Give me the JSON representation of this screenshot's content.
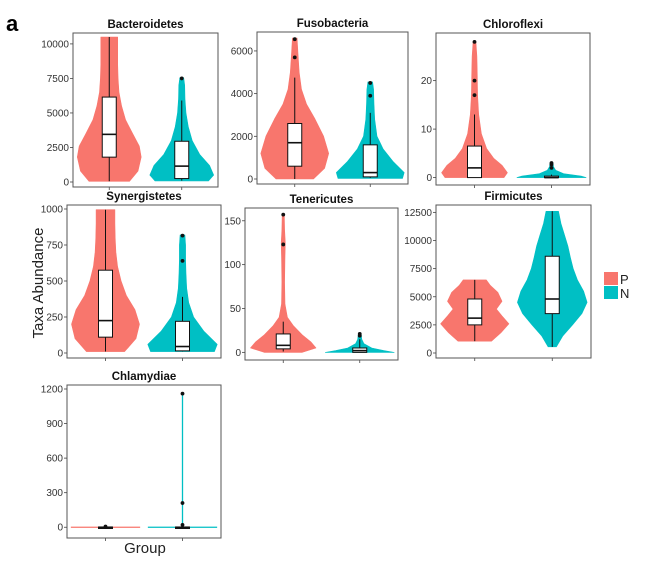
{
  "figure": {
    "panel_label": "a",
    "ylabel": "Taxa Abundance",
    "xlabel": "Group",
    "legend": {
      "position": "right",
      "items": [
        {
          "key": "P",
          "label": "P",
          "color": "#F8766D"
        },
        {
          "key": "N",
          "label": "N",
          "color": "#00BFC4"
        }
      ]
    }
  },
  "chart_data": [
    {
      "type": "violin",
      "title": "Bacteroidetes",
      "ylim": [
        0,
        10500
      ],
      "yticks": [
        0,
        2500,
        5000,
        7500,
        10000
      ],
      "ytick_labels": [
        "0",
        "2500",
        "5000",
        "7500",
        "10000"
      ],
      "groups": [
        {
          "name": "P",
          "min": 50,
          "q1": 1800,
          "median": 3450,
          "q3": 6150,
          "max": 10500,
          "outliers": [],
          "density": [
            [
              50,
              0.62
            ],
            [
              800,
              0.88
            ],
            [
              1800,
              0.98
            ],
            [
              2600,
              0.92
            ],
            [
              3500,
              0.72
            ],
            [
              4500,
              0.5
            ],
            [
              5500,
              0.38
            ],
            [
              6500,
              0.3
            ],
            [
              7500,
              0.27
            ],
            [
              8500,
              0.26
            ],
            [
              9500,
              0.26
            ],
            [
              10500,
              0.26
            ]
          ]
        },
        {
          "name": "N",
          "min": 100,
          "q1": 250,
          "median": 1150,
          "q3": 2950,
          "max": 5900,
          "outliers": [
            7500
          ],
          "density": [
            [
              80,
              0.82
            ],
            [
              500,
              0.98
            ],
            [
              1200,
              0.85
            ],
            [
              2000,
              0.55
            ],
            [
              3000,
              0.32
            ],
            [
              4000,
              0.2
            ],
            [
              5000,
              0.13
            ],
            [
              6000,
              0.1
            ],
            [
              7000,
              0.09
            ],
            [
              7550,
              0.06
            ]
          ]
        }
      ]
    },
    {
      "type": "violin",
      "title": "Fusobacteria",
      "ylim": [
        0,
        6700
      ],
      "yticks": [
        0,
        2000,
        4000,
        6000
      ],
      "ytick_labels": [
        "0",
        "2000",
        "4000",
        "6000"
      ],
      "groups": [
        {
          "name": "P",
          "min": 0,
          "q1": 600,
          "median": 1700,
          "q3": 2600,
          "max": 4750,
          "outliers": [
            5700,
            6550
          ],
          "density": [
            [
              0,
              0.55
            ],
            [
              500,
              0.88
            ],
            [
              1200,
              1.0
            ],
            [
              2000,
              0.85
            ],
            [
              2800,
              0.6
            ],
            [
              3500,
              0.35
            ],
            [
              4200,
              0.2
            ],
            [
              5000,
              0.13
            ],
            [
              5800,
              0.1
            ],
            [
              6600,
              0.07
            ]
          ]
        },
        {
          "name": "N",
          "min": 50,
          "q1": 100,
          "median": 300,
          "q3": 1600,
          "max": 3100,
          "outliers": [
            3900,
            4500
          ],
          "density": [
            [
              30,
              0.95
            ],
            [
              300,
              1.0
            ],
            [
              800,
              0.68
            ],
            [
              1400,
              0.38
            ],
            [
              2000,
              0.2
            ],
            [
              2800,
              0.13
            ],
            [
              3500,
              0.11
            ],
            [
              4200,
              0.1
            ],
            [
              4550,
              0.07
            ]
          ]
        }
      ]
    },
    {
      "type": "violin",
      "title": "Chloroflexi",
      "ylim": [
        -0.5,
        29
      ],
      "yticks": [
        0,
        10,
        20
      ],
      "ytick_labels": [
        "0",
        "10",
        "20"
      ],
      "groups": [
        {
          "name": "P",
          "min": 0,
          "q1": 0,
          "median": 2,
          "q3": 6.5,
          "max": 13,
          "outliers": [
            17,
            20,
            28
          ],
          "density": [
            [
              0,
              0.85
            ],
            [
              1,
              0.95
            ],
            [
              2.5,
              0.8
            ],
            [
              4,
              0.55
            ],
            [
              6,
              0.35
            ],
            [
              9,
              0.2
            ],
            [
              13,
              0.12
            ],
            [
              17,
              0.09
            ],
            [
              21,
              0.08
            ],
            [
              25,
              0.07
            ],
            [
              28,
              0.04
            ]
          ]
        },
        {
          "name": "N",
          "min": 0,
          "q1": 0,
          "median": 0,
          "q3": 0.3,
          "max": 0.6,
          "outliers": [
            2,
            2.7,
            3
          ],
          "density": [
            [
              0,
              1.0
            ],
            [
              0.3,
              0.85
            ],
            [
              0.8,
              0.35
            ],
            [
              1.5,
              0.12
            ],
            [
              2.2,
              0.06
            ],
            [
              3.1,
              0.04
            ]
          ]
        }
      ]
    },
    {
      "type": "violin",
      "title": "Synergistetes",
      "ylim": [
        0,
        1000
      ],
      "yticks": [
        0,
        250,
        500,
        750,
        1000
      ],
      "ytick_labels": [
        "0",
        "250",
        "500",
        "750",
        "1000"
      ],
      "groups": [
        {
          "name": "P",
          "min": 10,
          "q1": 110,
          "median": 225,
          "q3": 575,
          "max": 995,
          "outliers": [],
          "density": [
            [
              10,
              0.55
            ],
            [
              100,
              0.88
            ],
            [
              200,
              0.98
            ],
            [
              300,
              0.85
            ],
            [
              400,
              0.6
            ],
            [
              500,
              0.45
            ],
            [
              600,
              0.35
            ],
            [
              700,
              0.3
            ],
            [
              800,
              0.28
            ],
            [
              900,
              0.27
            ],
            [
              995,
              0.27
            ]
          ]
        },
        {
          "name": "N",
          "min": 10,
          "q1": 15,
          "median": 45,
          "q3": 220,
          "max": 390,
          "outliers": [
            640,
            815
          ],
          "density": [
            [
              10,
              0.92
            ],
            [
              60,
              1.0
            ],
            [
              150,
              0.62
            ],
            [
              250,
              0.32
            ],
            [
              350,
              0.18
            ],
            [
              450,
              0.12
            ],
            [
              550,
              0.1
            ],
            [
              650,
              0.09
            ],
            [
              750,
              0.09
            ],
            [
              820,
              0.07
            ]
          ]
        }
      ]
    },
    {
      "type": "violin",
      "title": "Tenericutes",
      "ylim": [
        -3,
        160
      ],
      "yticks": [
        0,
        50,
        100,
        150
      ],
      "ytick_labels": [
        "0",
        "50",
        "100",
        "150"
      ],
      "groups": [
        {
          "name": "P",
          "min": 1,
          "q1": 4,
          "median": 8,
          "q3": 21,
          "max": 35,
          "outliers": [
            123,
            157
          ],
          "density": [
            [
              0,
              0.55
            ],
            [
              5,
              0.95
            ],
            [
              12,
              0.8
            ],
            [
              20,
              0.55
            ],
            [
              30,
              0.3
            ],
            [
              40,
              0.12
            ],
            [
              55,
              0.05
            ],
            [
              80,
              0.04
            ],
            [
              110,
              0.05
            ],
            [
              125,
              0.06
            ],
            [
              140,
              0.04
            ],
            [
              158,
              0.03
            ]
          ]
        },
        {
          "name": "N",
          "min": 0,
          "q1": 0,
          "median": 2,
          "q3": 5,
          "max": 15,
          "outliers": [
            19,
            21
          ],
          "density": [
            [
              0,
              1.0
            ],
            [
              2,
              0.7
            ],
            [
              5,
              0.35
            ],
            [
              10,
              0.12
            ],
            [
              15,
              0.06
            ],
            [
              22,
              0.04
            ]
          ]
        }
      ]
    },
    {
      "type": "violin",
      "title": "Firmicutes",
      "ylim": [
        0,
        12800
      ],
      "yticks": [
        0,
        2500,
        5000,
        7500,
        10000,
        12500
      ],
      "ytick_labels": [
        "0",
        "2500",
        "5000",
        "7500",
        "10000",
        "12500"
      ],
      "groups": [
        {
          "name": "P",
          "min": 1050,
          "q1": 2500,
          "median": 3100,
          "q3": 4800,
          "max": 6500,
          "outliers": [],
          "density": [
            [
              1050,
              0.48
            ],
            [
              1800,
              0.75
            ],
            [
              2600,
              0.98
            ],
            [
              3300,
              0.78
            ],
            [
              3900,
              0.62
            ],
            [
              4600,
              0.78
            ],
            [
              5400,
              0.66
            ],
            [
              6000,
              0.45
            ],
            [
              6500,
              0.33
            ]
          ]
        },
        {
          "name": "N",
          "min": 550,
          "q1": 3500,
          "median": 4800,
          "q3": 8600,
          "max": 12600,
          "outliers": [],
          "density": [
            [
              550,
              0.12
            ],
            [
              1500,
              0.3
            ],
            [
              2500,
              0.58
            ],
            [
              3500,
              0.85
            ],
            [
              4500,
              1.0
            ],
            [
              5500,
              0.9
            ],
            [
              6500,
              0.72
            ],
            [
              7500,
              0.6
            ],
            [
              8500,
              0.52
            ],
            [
              9500,
              0.45
            ],
            [
              10500,
              0.35
            ],
            [
              11500,
              0.25
            ],
            [
              12600,
              0.18
            ]
          ]
        }
      ]
    },
    {
      "type": "violin",
      "title": "Chlamydiae",
      "ylim": [
        -50,
        1200
      ],
      "yticks": [
        0,
        300,
        600,
        900,
        1200
      ],
      "ytick_labels": [
        "0",
        "300",
        "600",
        "900",
        "1200"
      ],
      "groups": [
        {
          "name": "P",
          "min": 0,
          "q1": 0,
          "median": 0,
          "q3": 2,
          "max": 5,
          "outliers": [
            6
          ],
          "density": [
            [
              0,
              1.0
            ],
            [
              3,
              0.02
            ],
            [
              8,
              0.005
            ]
          ]
        },
        {
          "name": "N",
          "min": 0,
          "q1": 0,
          "median": 0,
          "q3": 2,
          "max": 10,
          "outliers": [
            20,
            210,
            1160
          ],
          "density": [
            [
              0,
              1.0
            ],
            [
              5,
              0.02
            ],
            [
              30,
              0.008
            ],
            [
              1160,
              0.008
            ]
          ]
        }
      ]
    }
  ]
}
